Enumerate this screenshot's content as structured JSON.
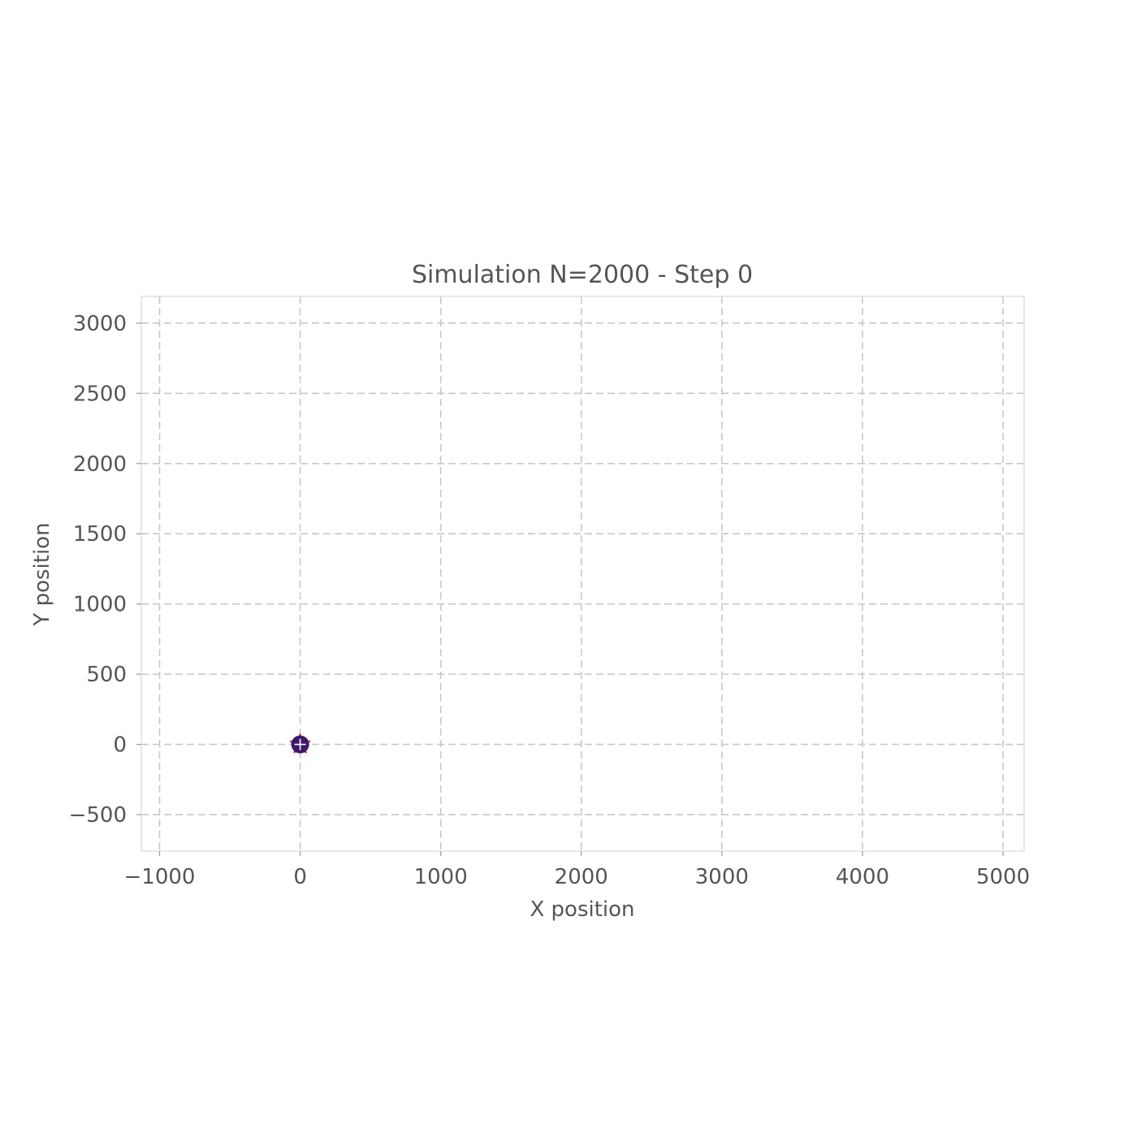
{
  "chart_data": {
    "type": "scatter",
    "title": "Simulation N=2000 - Step 0",
    "xlabel": "X position",
    "ylabel": "Y position",
    "xlim": [
      -1130,
      5150
    ],
    "ylim": [
      -760,
      3190
    ],
    "xticks": [
      -1000,
      0,
      1000,
      2000,
      3000,
      4000,
      5000
    ],
    "xtick_labels": [
      "−1000",
      "0",
      "1000",
      "2000",
      "3000",
      "4000",
      "5000"
    ],
    "yticks": [
      -500,
      0,
      500,
      1000,
      1500,
      2000,
      2500,
      3000
    ],
    "ytick_labels": [
      "−500",
      "0",
      "500",
      "1000",
      "1500",
      "2000",
      "2500",
      "3000"
    ],
    "grid": true,
    "series": [
      {
        "marker": "star",
        "color": "#3b1a6b",
        "edge_color": "#e0202a",
        "points": [
          [
            0,
            0
          ]
        ]
      }
    ],
    "center_marker": {
      "symbol": "plus",
      "color": "#ffffff",
      "x": 0,
      "y": 0
    }
  }
}
